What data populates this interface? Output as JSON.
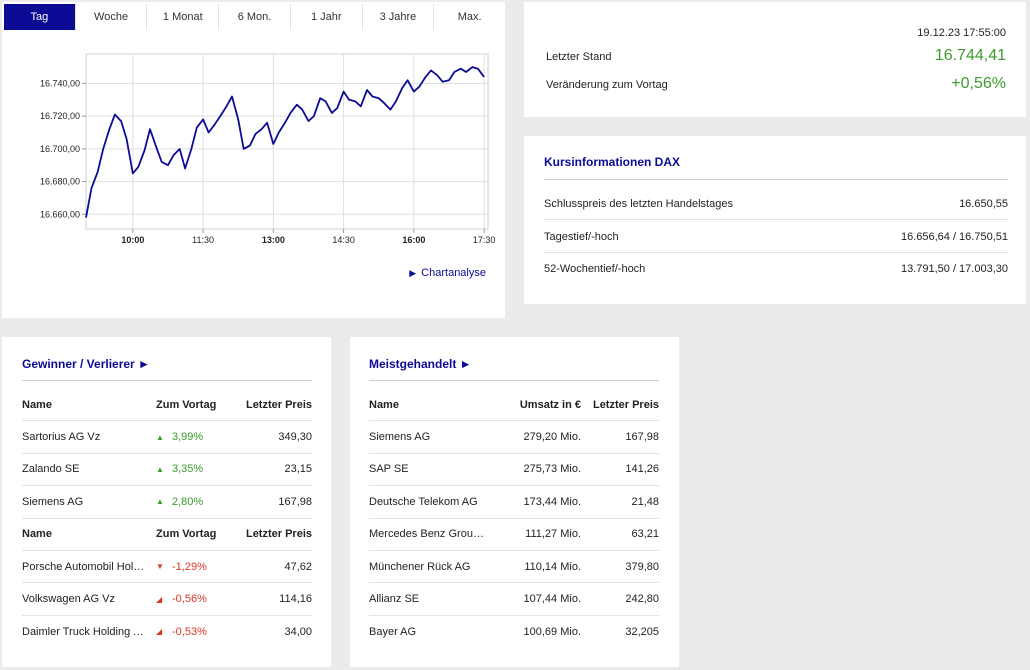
{
  "tabs": [
    "Tag",
    "Woche",
    "1 Monat",
    "6 Mon.",
    "1 Jahr",
    "3 Jahre",
    "Max."
  ],
  "active_tab": "Tag",
  "chart_link": "Chartanalyse",
  "chart_data": {
    "type": "line",
    "color": "#0b0b96",
    "x_ticks": [
      "10:00",
      "11:30",
      "13:00",
      "14:30",
      "16:00",
      "17:30"
    ],
    "y_ticks": [
      "16.660,00",
      "16.680,00",
      "16.700,00",
      "16.720,00",
      "16.740,00"
    ],
    "xlim": [
      "09:00",
      "17:35"
    ],
    "ylim": [
      16651,
      16758
    ],
    "series": [
      {
        "x": [
          "09:00",
          "09:07",
          "09:15",
          "09:22",
          "09:30",
          "09:37",
          "09:45",
          "09:52",
          "10:00",
          "10:07",
          "10:15",
          "10:22",
          "10:30",
          "10:37",
          "10:45",
          "10:52",
          "11:00",
          "11:07",
          "11:15",
          "11:22",
          "11:30",
          "11:37",
          "11:45",
          "11:52",
          "12:00",
          "12:07",
          "12:15",
          "12:22",
          "12:30",
          "12:37",
          "12:45",
          "12:52",
          "13:00",
          "13:07",
          "13:15",
          "13:22",
          "13:30",
          "13:37",
          "13:45",
          "13:52",
          "14:00",
          "14:07",
          "14:15",
          "14:22",
          "14:30",
          "14:37",
          "14:45",
          "14:52",
          "15:00",
          "15:07",
          "15:15",
          "15:22",
          "15:30",
          "15:37",
          "15:45",
          "15:52",
          "16:00",
          "16:07",
          "16:15",
          "16:22",
          "16:30",
          "16:37",
          "16:45",
          "16:52",
          "17:00",
          "17:07",
          "17:15",
          "17:22",
          "17:30"
        ],
        "y": [
          16658,
          16676,
          16686,
          16700,
          16712,
          16721,
          16717,
          16706,
          16685,
          16689,
          16699,
          16712,
          16701,
          16692,
          16690,
          16696,
          16700,
          16688,
          16700,
          16713,
          16718,
          16710,
          16715,
          16720,
          16726,
          16732,
          16718,
          16700,
          16702,
          16709,
          16712,
          16716,
          16703,
          16710,
          16716,
          16722,
          16727,
          16724,
          16717,
          16720,
          16731,
          16729,
          16722,
          16725,
          16735,
          16730,
          16729,
          16726,
          16736,
          16732,
          16731,
          16728,
          16724,
          16729,
          16737,
          16742,
          16735,
          16738,
          16744,
          16748,
          16745,
          16741,
          16742,
          16747,
          16749,
          16747,
          16750,
          16749,
          16744
        ]
      }
    ]
  },
  "quote": {
    "timestamp": "19.12.23 17:55:00",
    "last_label": "Letzter Stand",
    "last_value": "16.744,41",
    "change_label": "Veränderung zum Vortag",
    "change_value": "+0,56%"
  },
  "info": {
    "title": "Kursinformationen DAX",
    "rows": [
      {
        "label": "Schlusspreis des letzten Handelstages",
        "value": "16.650,55"
      },
      {
        "label": "Tagestief/-hoch",
        "value": "16.656,64 / 16.750,51"
      },
      {
        "label": "52-Wochentief/-hoch",
        "value": "13.791,50 / 17.003,30"
      }
    ]
  },
  "winners": {
    "title": "Gewinner / Verlierer ►",
    "header": [
      "Name",
      "Zum Vortag",
      "Letzter Preis"
    ],
    "gainers": [
      {
        "name": "Sartorius AG Vz",
        "change": "3,99%",
        "price": "349,30"
      },
      {
        "name": "Zalando SE",
        "change": "3,35%",
        "price": "23,15"
      },
      {
        "name": "Siemens AG",
        "change": "2,80%",
        "price": "167,98"
      }
    ],
    "losers": [
      {
        "name": "Porsche Automobil Holding...",
        "change": "-1,29%",
        "price": "47,62"
      },
      {
        "name": "Volkswagen AG Vz",
        "change": "-0,56%",
        "price": "114,16"
      },
      {
        "name": "Daimler Truck Holding AG",
        "change": "-0,53%",
        "price": "34,00"
      }
    ]
  },
  "mostly": {
    "title": "Meistgehandelt ►",
    "header": [
      "Name",
      "Umsatz in €",
      "Letzter Preis"
    ],
    "rows": [
      {
        "name": "Siemens AG",
        "volume": "279,20 Mio.",
        "price": "167,98"
      },
      {
        "name": "SAP SE",
        "volume": "275,73 Mio.",
        "price": "141,26"
      },
      {
        "name": "Deutsche Telekom AG",
        "volume": "173,44 Mio.",
        "price": "21,48"
      },
      {
        "name": "Mercedes Benz Group AG ...",
        "volume": "111,27 Mio.",
        "price": "63,21"
      },
      {
        "name": "Münchener Rück AG",
        "volume": "110,14 Mio.",
        "price": "379,80"
      },
      {
        "name": "Allianz SE",
        "volume": "107,44 Mio.",
        "price": "242,80"
      },
      {
        "name": "Bayer AG",
        "volume": "100,69 Mio.",
        "price": "32,205"
      }
    ]
  },
  "colors": {
    "accent": "#0b0b96",
    "up": "#3b9b2b",
    "down": "#d9352b"
  }
}
